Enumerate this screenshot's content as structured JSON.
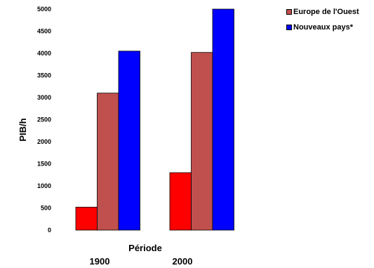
{
  "chart_data": {
    "type": "bar",
    "categories": [
      "1900",
      "2000"
    ],
    "series": [
      {
        "name": "",
        "color": "#ff0000",
        "values": [
          520,
          1300
        ]
      },
      {
        "name": "Europe de l'Ouest",
        "color": "#c0504d",
        "values": [
          3100,
          4020
        ]
      },
      {
        "name": "Nouveaux pays*",
        "color": "#0000ff",
        "values": [
          4050,
          5000
        ]
      }
    ],
    "xlabel": "Période",
    "ylabel": "PIB/h",
    "ylim": [
      0,
      5000
    ],
    "yticks": [
      0,
      500,
      1000,
      1500,
      2000,
      2500,
      3000,
      3500,
      4000,
      4500,
      5000
    ],
    "legend": [
      "Europe de l'Ouest",
      "Nouveaux pays*"
    ],
    "legend_position": "top-right",
    "grid": false
  }
}
